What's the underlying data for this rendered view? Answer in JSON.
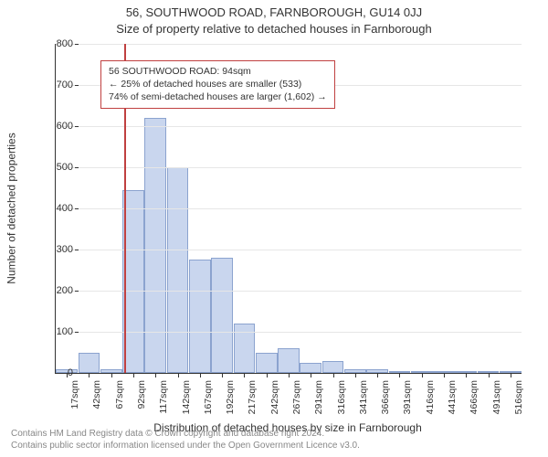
{
  "header": {
    "address_line": "56, SOUTHWOOD ROAD, FARNBOROUGH, GU14 0JJ",
    "subtitle": "Size of property relative to detached houses in Farnborough"
  },
  "chart": {
    "type": "histogram",
    "ylim": [
      0,
      800
    ],
    "ytick_step": 100,
    "ylabel": "Number of detached properties",
    "xlabel": "Distribution of detached houses by size in Farnborough",
    "categories": [
      "17sqm",
      "42sqm",
      "67sqm",
      "92sqm",
      "117sqm",
      "142sqm",
      "167sqm",
      "192sqm",
      "217sqm",
      "242sqm",
      "267sqm",
      "291sqm",
      "316sqm",
      "341sqm",
      "366sqm",
      "391sqm",
      "416sqm",
      "441sqm",
      "466sqm",
      "491sqm",
      "516sqm"
    ],
    "values": [
      10,
      50,
      10,
      445,
      620,
      500,
      275,
      280,
      120,
      50,
      60,
      25,
      30,
      10,
      10,
      5,
      0,
      5,
      3,
      0,
      0
    ],
    "bar_fill": "#c9d6ee",
    "bar_stroke": "#8ba3cf",
    "bar_width": 0.98,
    "background_color": "#ffffff",
    "grid_color": "#e6e6e6",
    "axis_color": "#333333",
    "tick_fontsize": 11,
    "label_fontsize": 12,
    "marker": {
      "category_index": 3,
      "fraction_into_bin": 0.08,
      "color": "#c04040"
    },
    "annotation": {
      "border_color": "#c04040",
      "lines": [
        "56 SOUTHWOOD ROAD: 94sqm",
        "← 25% of detached houses are smaller (533)",
        "74% of semi-detached houses are larger (1,602) →"
      ]
    }
  },
  "footer": {
    "line1": "Contains HM Land Registry data © Crown copyright and database right 2024.",
    "line2": "Contains public sector information licensed under the Open Government Licence v3.0."
  }
}
